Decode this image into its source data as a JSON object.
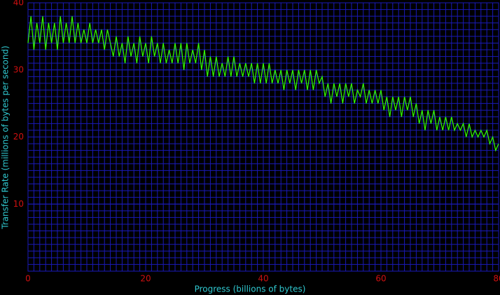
{
  "chart_data": {
    "type": "line",
    "x_label": "Progress (billions of bytes)",
    "y_label": "Transfer Rate (millions of bytes per second)",
    "x": [
      0,
      0.5,
      1,
      1.5,
      2,
      2.5,
      3,
      3.5,
      4,
      4.5,
      5,
      5.5,
      6,
      6.5,
      7,
      7.5,
      8,
      8.5,
      9,
      9.5,
      10,
      10.5,
      11,
      11.5,
      12,
      12.5,
      13,
      13.5,
      14,
      14.5,
      15,
      15.5,
      16,
      16.5,
      17,
      17.5,
      18,
      18.5,
      19,
      19.5,
      20,
      20.5,
      21,
      21.5,
      22,
      22.5,
      23,
      23.5,
      24,
      24.5,
      25,
      25.5,
      26,
      26.5,
      27,
      27.5,
      28,
      28.5,
      29,
      29.5,
      30,
      30.5,
      31,
      31.5,
      32,
      32.5,
      33,
      33.5,
      34,
      34.5,
      35,
      35.5,
      36,
      36.5,
      37,
      37.5,
      38,
      38.5,
      39,
      39.5,
      40,
      40.5,
      41,
      41.5,
      42,
      42.5,
      43,
      43.5,
      44,
      44.5,
      45,
      45.5,
      46,
      46.5,
      47,
      47.5,
      48,
      48.5,
      49,
      49.5,
      50,
      50.5,
      51,
      51.5,
      52,
      52.5,
      53,
      53.5,
      54,
      54.5,
      55,
      55.5,
      56,
      56.5,
      57,
      57.5,
      58,
      58.5,
      59,
      59.5,
      60,
      60.5,
      61,
      61.5,
      62,
      62.5,
      63,
      63.5,
      64,
      64.5,
      65,
      65.5,
      66,
      66.5,
      67,
      67.5,
      68,
      68.5,
      69,
      69.5,
      70,
      70.5,
      71,
      71.5,
      72,
      72.5,
      73,
      73.5,
      74,
      74.5,
      75,
      75.5,
      76,
      76.5,
      77,
      77.5,
      78,
      78.5,
      79,
      79.5,
      80
    ],
    "series": [
      {
        "color": "#33ff00",
        "values": [
          34,
          38,
          33,
          37,
          34,
          38,
          33,
          37,
          34,
          37,
          33,
          38,
          34,
          37,
          34,
          38,
          34,
          37,
          34,
          36,
          34,
          37,
          34,
          36,
          34,
          36,
          33,
          36,
          34,
          32,
          35,
          32,
          34,
          31,
          35,
          32,
          34,
          31,
          35,
          32,
          34,
          31,
          35,
          32,
          34,
          31,
          34,
          31,
          33,
          31,
          34,
          31,
          34,
          30,
          34,
          31,
          33,
          31,
          34,
          30,
          33,
          29,
          32,
          29,
          32,
          29,
          31,
          29,
          32,
          29,
          32,
          29,
          31,
          29,
          31,
          29,
          31,
          28,
          31,
          28,
          31,
          28,
          31,
          28,
          30,
          28,
          30,
          27,
          30,
          28,
          30,
          27,
          30,
          28,
          30,
          27,
          30,
          27,
          30,
          28,
          29,
          26,
          28,
          25,
          28,
          26,
          28,
          25,
          28,
          26,
          28,
          25,
          27,
          26,
          28,
          25,
          27,
          25,
          27,
          25,
          27,
          24,
          26,
          23,
          26,
          24,
          26,
          23,
          26,
          24,
          26,
          23,
          25,
          22,
          24,
          21,
          24,
          22,
          24,
          21,
          23,
          21,
          23,
          21,
          23,
          21,
          22,
          21,
          22,
          20,
          22,
          20,
          21,
          20,
          21,
          20,
          21,
          19,
          20,
          18,
          19
        ]
      }
    ],
    "xlim": [
      0,
      80
    ],
    "xticks": [
      0,
      20,
      40,
      60,
      80
    ],
    "ylim": [
      0,
      40
    ],
    "yticks": [
      10,
      20,
      30,
      40
    ],
    "grid": true
  }
}
